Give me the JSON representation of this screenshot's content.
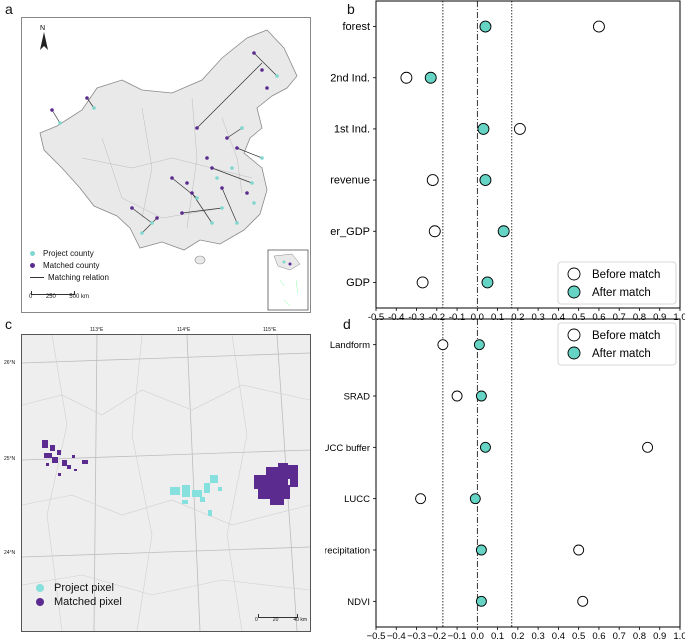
{
  "panels": {
    "a": "a",
    "b": "b",
    "c": "c",
    "d": "d"
  },
  "map_a": {
    "north": "N",
    "legend": [
      {
        "label": "Project county",
        "color": "#7fd7d0"
      },
      {
        "label": "Matched county",
        "color": "#5b2b8f"
      },
      {
        "label": "Matching relation",
        "color": "#333333"
      }
    ],
    "scale_labels": [
      "0",
      "250",
      "500 km"
    ]
  },
  "map_c": {
    "lon_labels": [
      "113°E",
      "114°E",
      "115°E"
    ],
    "lat_labels": [
      "26°N",
      "25°N",
      "24°N"
    ],
    "legend": [
      {
        "label": "Project pixel",
        "color": "#86e0dd"
      },
      {
        "label": "Matched pixel",
        "color": "#5b2b8f"
      }
    ],
    "scale_labels": [
      "0",
      "20",
      "40 km"
    ]
  },
  "chart_data": [
    {
      "type": "scatter",
      "panel": "b",
      "categories": [
        "forest",
        "2nd Ind.",
        "1st Ind.",
        "revenue",
        "per_GDP",
        "GDP"
      ],
      "series": [
        {
          "name": "Before match",
          "values": [
            0.6,
            -0.35,
            0.21,
            -0.22,
            -0.21,
            -0.27
          ],
          "color": "#ffffff"
        },
        {
          "name": "After match",
          "values": [
            0.04,
            -0.23,
            0.03,
            0.04,
            0.13,
            0.05
          ],
          "color": "#66d4c4"
        }
      ],
      "xlim": [
        -0.5,
        1.0
      ],
      "xticks": [
        "-0.5",
        "-0.4",
        "-0.3",
        "-0.2",
        "-0.1",
        "0.0",
        "0.1",
        "0.2",
        "0.3",
        "0.4",
        "0.5",
        "0.6",
        "0.7",
        "0.8",
        "0.9",
        "1.0"
      ],
      "reference_lines": [
        -0.17,
        0.0,
        0.17
      ],
      "legend_position": "bottom-right"
    },
    {
      "type": "scatter",
      "panel": "d",
      "categories": [
        "Landform",
        "SRAD",
        "LUCC buffer",
        "LUCC",
        "Precipitation",
        "NDVI"
      ],
      "series": [
        {
          "name": "Before match",
          "values": [
            -0.17,
            -0.1,
            0.84,
            -0.28,
            0.5,
            0.52
          ],
          "color": "#ffffff"
        },
        {
          "name": "After match",
          "values": [
            0.01,
            0.02,
            0.04,
            -0.01,
            0.02,
            0.02
          ],
          "color": "#66d4c4"
        }
      ],
      "xlim": [
        -0.5,
        1.0
      ],
      "xticks": [
        "−0.5",
        "−0.4",
        "−0.3",
        "−0.2",
        "−0.1",
        "0.0",
        "0.1",
        "0.2",
        "0.3",
        "0.4",
        "0.5",
        "0.6",
        "0.7",
        "0.8",
        "0.9",
        "1.0"
      ],
      "reference_lines": [
        -0.17,
        0.0,
        0.17
      ],
      "legend_position": "top-right"
    }
  ]
}
